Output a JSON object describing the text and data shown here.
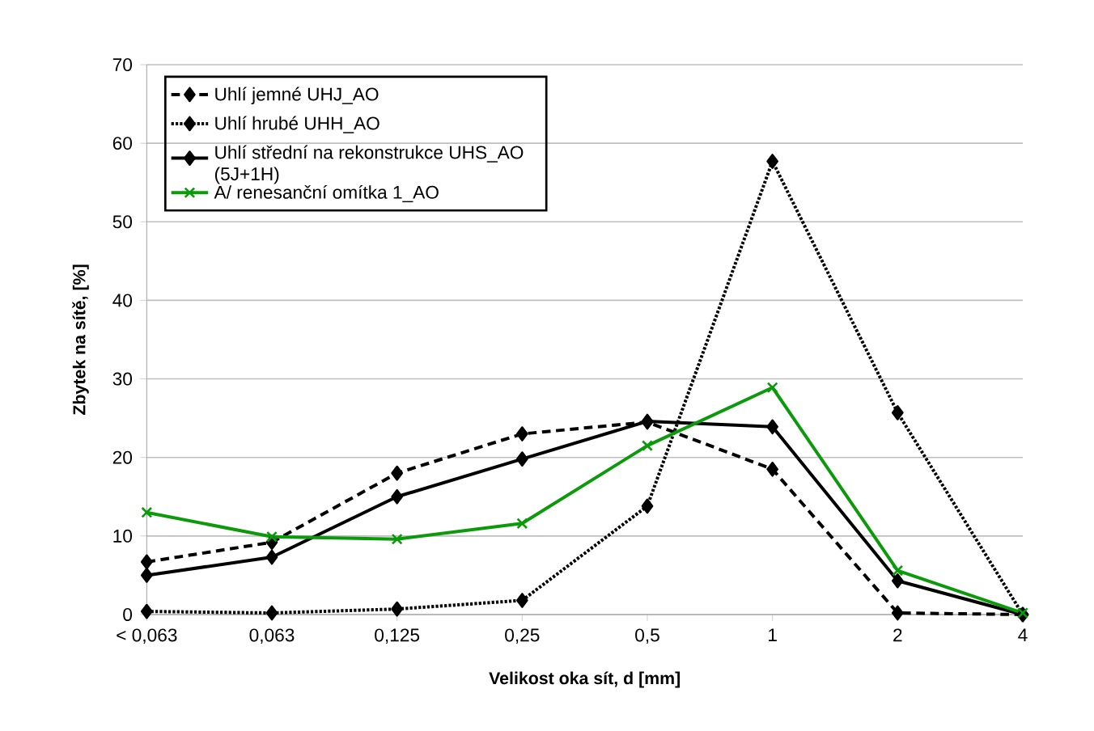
{
  "chart_data": {
    "type": "line",
    "xlabel": "Velikost oka sít, d [mm]",
    "ylabel": "Zbytek na sítě, [%]",
    "categories": [
      "< 0,063",
      "0,063",
      "0,125",
      "0,25",
      "0,5",
      "1",
      "2",
      "4"
    ],
    "ylim": [
      0,
      70
    ],
    "yticks": [
      0,
      10,
      20,
      30,
      40,
      50,
      60,
      70
    ],
    "grid": "y",
    "legend": "top left",
    "series": [
      {
        "name": "Uhlí jemné UHJ_AO",
        "color": "#000000",
        "marker": "diamond",
        "line_style": "dashed",
        "values": [
          6.7,
          9.2,
          18,
          23,
          24.5,
          18.5,
          0.2,
          0
        ]
      },
      {
        "name": "Uhlí hrubé UHH_AO",
        "color": "#000000",
        "marker": "diamond",
        "line_style": "dotted",
        "values": [
          0.4,
          0.2,
          0.7,
          1.8,
          13.8,
          57.7,
          25.7,
          0
        ]
      },
      {
        "name": "Uhlí střední na rekonstrukce UHS_AO (5J+1H)",
        "color": "#000000",
        "marker": "diamond",
        "line_style": "solid",
        "values": [
          5,
          7.3,
          15,
          19.8,
          24.6,
          23.9,
          4.3,
          0
        ]
      },
      {
        "name": "A/ renesanční omítka 1_AO",
        "color": "#0a9a0a",
        "marker": "cross",
        "line_style": "solid",
        "values": [
          13,
          9.9,
          9.6,
          11.6,
          21.5,
          28.9,
          5.6,
          0.2
        ]
      }
    ]
  }
}
